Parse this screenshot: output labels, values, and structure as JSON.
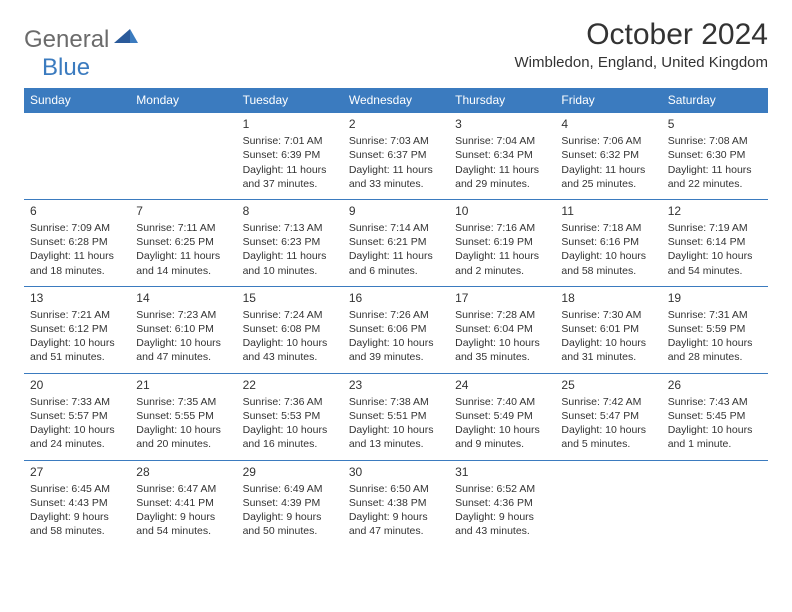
{
  "header": {
    "logo_general": "General",
    "logo_blue": "Blue",
    "month_title": "October 2024",
    "location": "Wimbledon, England, United Kingdom"
  },
  "style": {
    "header_bg": "#3b7bbf",
    "header_fg": "#ffffff",
    "border_color": "#3b7bbf",
    "text_color": "#333333",
    "logo_gray": "#6b6b6b",
    "logo_blue": "#3b7bbf",
    "month_fontsize": 30,
    "location_fontsize": 15,
    "day_header_fontsize": 12,
    "cell_fontsize": 10.5
  },
  "day_headers": [
    "Sunday",
    "Monday",
    "Tuesday",
    "Wednesday",
    "Thursday",
    "Friday",
    "Saturday"
  ],
  "weeks": [
    [
      null,
      null,
      {
        "n": "1",
        "sr": "Sunrise: 7:01 AM",
        "ss": "Sunset: 6:39 PM",
        "d1": "Daylight: 11 hours",
        "d2": "and 37 minutes."
      },
      {
        "n": "2",
        "sr": "Sunrise: 7:03 AM",
        "ss": "Sunset: 6:37 PM",
        "d1": "Daylight: 11 hours",
        "d2": "and 33 minutes."
      },
      {
        "n": "3",
        "sr": "Sunrise: 7:04 AM",
        "ss": "Sunset: 6:34 PM",
        "d1": "Daylight: 11 hours",
        "d2": "and 29 minutes."
      },
      {
        "n": "4",
        "sr": "Sunrise: 7:06 AM",
        "ss": "Sunset: 6:32 PM",
        "d1": "Daylight: 11 hours",
        "d2": "and 25 minutes."
      },
      {
        "n": "5",
        "sr": "Sunrise: 7:08 AM",
        "ss": "Sunset: 6:30 PM",
        "d1": "Daylight: 11 hours",
        "d2": "and 22 minutes."
      }
    ],
    [
      {
        "n": "6",
        "sr": "Sunrise: 7:09 AM",
        "ss": "Sunset: 6:28 PM",
        "d1": "Daylight: 11 hours",
        "d2": "and 18 minutes."
      },
      {
        "n": "7",
        "sr": "Sunrise: 7:11 AM",
        "ss": "Sunset: 6:25 PM",
        "d1": "Daylight: 11 hours",
        "d2": "and 14 minutes."
      },
      {
        "n": "8",
        "sr": "Sunrise: 7:13 AM",
        "ss": "Sunset: 6:23 PM",
        "d1": "Daylight: 11 hours",
        "d2": "and 10 minutes."
      },
      {
        "n": "9",
        "sr": "Sunrise: 7:14 AM",
        "ss": "Sunset: 6:21 PM",
        "d1": "Daylight: 11 hours",
        "d2": "and 6 minutes."
      },
      {
        "n": "10",
        "sr": "Sunrise: 7:16 AM",
        "ss": "Sunset: 6:19 PM",
        "d1": "Daylight: 11 hours",
        "d2": "and 2 minutes."
      },
      {
        "n": "11",
        "sr": "Sunrise: 7:18 AM",
        "ss": "Sunset: 6:16 PM",
        "d1": "Daylight: 10 hours",
        "d2": "and 58 minutes."
      },
      {
        "n": "12",
        "sr": "Sunrise: 7:19 AM",
        "ss": "Sunset: 6:14 PM",
        "d1": "Daylight: 10 hours",
        "d2": "and 54 minutes."
      }
    ],
    [
      {
        "n": "13",
        "sr": "Sunrise: 7:21 AM",
        "ss": "Sunset: 6:12 PM",
        "d1": "Daylight: 10 hours",
        "d2": "and 51 minutes."
      },
      {
        "n": "14",
        "sr": "Sunrise: 7:23 AM",
        "ss": "Sunset: 6:10 PM",
        "d1": "Daylight: 10 hours",
        "d2": "and 47 minutes."
      },
      {
        "n": "15",
        "sr": "Sunrise: 7:24 AM",
        "ss": "Sunset: 6:08 PM",
        "d1": "Daylight: 10 hours",
        "d2": "and 43 minutes."
      },
      {
        "n": "16",
        "sr": "Sunrise: 7:26 AM",
        "ss": "Sunset: 6:06 PM",
        "d1": "Daylight: 10 hours",
        "d2": "and 39 minutes."
      },
      {
        "n": "17",
        "sr": "Sunrise: 7:28 AM",
        "ss": "Sunset: 6:04 PM",
        "d1": "Daylight: 10 hours",
        "d2": "and 35 minutes."
      },
      {
        "n": "18",
        "sr": "Sunrise: 7:30 AM",
        "ss": "Sunset: 6:01 PM",
        "d1": "Daylight: 10 hours",
        "d2": "and 31 minutes."
      },
      {
        "n": "19",
        "sr": "Sunrise: 7:31 AM",
        "ss": "Sunset: 5:59 PM",
        "d1": "Daylight: 10 hours",
        "d2": "and 28 minutes."
      }
    ],
    [
      {
        "n": "20",
        "sr": "Sunrise: 7:33 AM",
        "ss": "Sunset: 5:57 PM",
        "d1": "Daylight: 10 hours",
        "d2": "and 24 minutes."
      },
      {
        "n": "21",
        "sr": "Sunrise: 7:35 AM",
        "ss": "Sunset: 5:55 PM",
        "d1": "Daylight: 10 hours",
        "d2": "and 20 minutes."
      },
      {
        "n": "22",
        "sr": "Sunrise: 7:36 AM",
        "ss": "Sunset: 5:53 PM",
        "d1": "Daylight: 10 hours",
        "d2": "and 16 minutes."
      },
      {
        "n": "23",
        "sr": "Sunrise: 7:38 AM",
        "ss": "Sunset: 5:51 PM",
        "d1": "Daylight: 10 hours",
        "d2": "and 13 minutes."
      },
      {
        "n": "24",
        "sr": "Sunrise: 7:40 AM",
        "ss": "Sunset: 5:49 PM",
        "d1": "Daylight: 10 hours",
        "d2": "and 9 minutes."
      },
      {
        "n": "25",
        "sr": "Sunrise: 7:42 AM",
        "ss": "Sunset: 5:47 PM",
        "d1": "Daylight: 10 hours",
        "d2": "and 5 minutes."
      },
      {
        "n": "26",
        "sr": "Sunrise: 7:43 AM",
        "ss": "Sunset: 5:45 PM",
        "d1": "Daylight: 10 hours",
        "d2": "and 1 minute."
      }
    ],
    [
      {
        "n": "27",
        "sr": "Sunrise: 6:45 AM",
        "ss": "Sunset: 4:43 PM",
        "d1": "Daylight: 9 hours",
        "d2": "and 58 minutes."
      },
      {
        "n": "28",
        "sr": "Sunrise: 6:47 AM",
        "ss": "Sunset: 4:41 PM",
        "d1": "Daylight: 9 hours",
        "d2": "and 54 minutes."
      },
      {
        "n": "29",
        "sr": "Sunrise: 6:49 AM",
        "ss": "Sunset: 4:39 PM",
        "d1": "Daylight: 9 hours",
        "d2": "and 50 minutes."
      },
      {
        "n": "30",
        "sr": "Sunrise: 6:50 AM",
        "ss": "Sunset: 4:38 PM",
        "d1": "Daylight: 9 hours",
        "d2": "and 47 minutes."
      },
      {
        "n": "31",
        "sr": "Sunrise: 6:52 AM",
        "ss": "Sunset: 4:36 PM",
        "d1": "Daylight: 9 hours",
        "d2": "and 43 minutes."
      },
      null,
      null
    ]
  ]
}
